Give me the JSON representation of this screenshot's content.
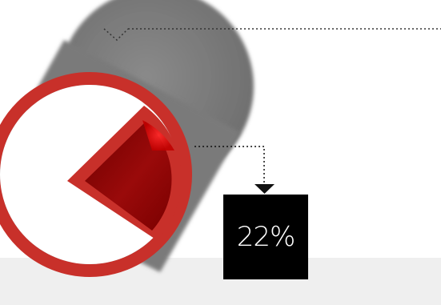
{
  "stat": {
    "percent_label": "22%",
    "percent_value": 22
  },
  "colors": {
    "disc_shadow": "#7a7a7a",
    "ring": "#c8302a",
    "wedge_dark": "#8b0000",
    "wedge_highlight": "#ff1a1a",
    "callout_box": "#000000",
    "callout_text": "#ffffff",
    "floor": "#efefef"
  }
}
